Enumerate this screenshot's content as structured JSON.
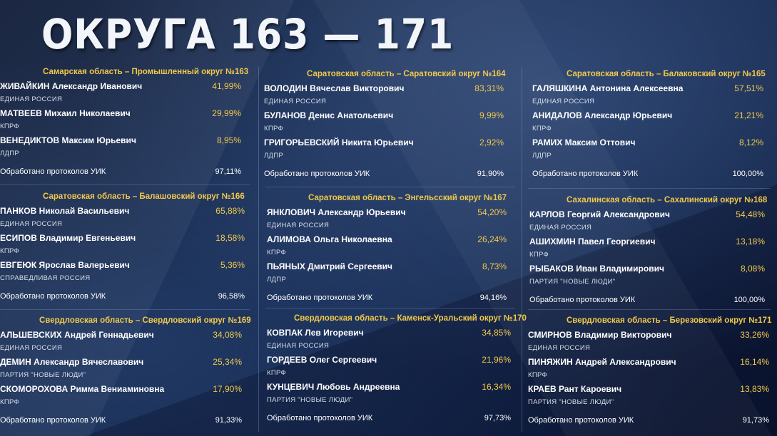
{
  "title": "ОКРУГА 163 — 171",
  "accent_color": "#f1c84a",
  "processed_label": "Обработано протоколов УИК",
  "districts": [
    {
      "header": "Самарская область – Промышленный округ №163",
      "candidates": [
        {
          "name": "ЖИВАЙКИН Александр Иванович",
          "percent": "41,99%",
          "party": "ЕДИНАЯ РОССИЯ"
        },
        {
          "name": "МАТВЕЕВ Михаил Николаевич",
          "percent": "29,99%",
          "party": "КПРФ"
        },
        {
          "name": "ВЕНЕДИКТОВ Максим Юрьевич",
          "percent": "8,95%",
          "party": "ЛДПР"
        }
      ],
      "processed": "97,11%"
    },
    {
      "header": "Саратовская область – Саратовский округ №164",
      "candidates": [
        {
          "name": "ВОЛОДИН Вячеслав Викторович",
          "percent": "83,31%",
          "party": "ЕДИНАЯ РОССИЯ"
        },
        {
          "name": "БУЛАНОВ Денис Анатольевич",
          "percent": "9,99%",
          "party": "КПРФ"
        },
        {
          "name": "ГРИГОРЬЕВСКИЙ Никита Юрьевич",
          "percent": "2,92%",
          "party": "ЛДПР"
        }
      ],
      "processed": "91,90%"
    },
    {
      "header": "Саратовская область – Балаковский округ №165",
      "candidates": [
        {
          "name": "ГАЛЯШКИНА Антонина Алексеевна",
          "percent": "57,51%",
          "party": "ЕДИНАЯ РОССИЯ"
        },
        {
          "name": "АНИДАЛОВ Александр Юрьевич",
          "percent": "21,21%",
          "party": "КПРФ"
        },
        {
          "name": "РАМИХ Максим Оттович",
          "percent": "8,12%",
          "party": "ЛДПР"
        }
      ],
      "processed": "100,00%"
    },
    {
      "header": "Саратовская область – Балашовский округ №166",
      "candidates": [
        {
          "name": "ПАНКОВ Николай Васильевич",
          "percent": "65,88%",
          "party": "ЕДИНАЯ РОССИЯ"
        },
        {
          "name": "ЕСИПОВ Владимир Евгеньевич",
          "percent": "18,58%",
          "party": "КПРФ"
        },
        {
          "name": "ЕВГЕЮК Ярослав Валерьевич",
          "percent": "5,36%",
          "party": "СПРАВЕДЛИВАЯ РОССИЯ"
        }
      ],
      "processed": "96,58%"
    },
    {
      "header": "Саратовская область – Энгельсский округ №167",
      "candidates": [
        {
          "name": "ЯНКЛОВИЧ Александр Юрьевич",
          "percent": "54,20%",
          "party": "ЕДИНАЯ РОССИЯ"
        },
        {
          "name": "АЛИМОВА Ольга Николаевна",
          "percent": "26,24%",
          "party": "КПРФ"
        },
        {
          "name": "ПЬЯНЫХ Дмитрий Сергеевич",
          "percent": "8,73%",
          "party": "ЛДПР"
        }
      ],
      "processed": "94,16%"
    },
    {
      "header": "Сахалинская область – Сахалинский округ №168",
      "candidates": [
        {
          "name": "КАРЛОВ Георгий Александрович",
          "percent": "54,48%",
          "party": "ЕДИНАЯ РОССИЯ"
        },
        {
          "name": "АШИХМИН Павел Георгиевич",
          "percent": "13,18%",
          "party": "КПРФ"
        },
        {
          "name": "РЫБАКОВ Иван Владимирович",
          "percent": "8,08%",
          "party": "ПАРТИЯ \"НОВЫЕ ЛЮДИ\""
        }
      ],
      "processed": "100,00%"
    },
    {
      "header": "Свердловская область – Свердловский округ №169",
      "candidates": [
        {
          "name": "АЛЬШЕВСКИХ Андрей Геннадьевич",
          "percent": "34,08%",
          "party": "ЕДИНАЯ РОССИЯ"
        },
        {
          "name": "ДЕМИН Александр Вячеславович",
          "percent": "25,34%",
          "party": "ПАРТИЯ \"НОВЫЕ ЛЮДИ\""
        },
        {
          "name": "СКОМОРОХОВА Римма Вениаминовна",
          "percent": "17,90%",
          "party": "КПРФ"
        }
      ],
      "processed": "91,33%"
    },
    {
      "header": "Свердловская область – Каменск-Уральский округ №170",
      "candidates": [
        {
          "name": "КОВПАК Лев Игоревич",
          "percent": "34,85%",
          "party": "ЕДИНАЯ РОССИЯ"
        },
        {
          "name": "ГОРДЕЕВ Олег Сергеевич",
          "percent": "21,96%",
          "party": "КПРФ"
        },
        {
          "name": "КУНЦЕВИЧ Любовь Андреевна",
          "percent": "16,34%",
          "party": "ПАРТИЯ \"НОВЫЕ ЛЮДИ\""
        }
      ],
      "processed": "97,73%"
    },
    {
      "header": "Свердловская область – Березовский округ №171",
      "candidates": [
        {
          "name": "СМИРНОВ Владимир Викторович",
          "percent": "33,26%",
          "party": "ЕДИНАЯ РОССИЯ"
        },
        {
          "name": "ПИНЯЖИН Андрей Александрович",
          "percent": "16,14%",
          "party": "КПРФ"
        },
        {
          "name": "КРАЕВ Рант Кароевич",
          "percent": "13,83%",
          "party": "ПАРТИЯ \"НОВЫЕ ЛЮДИ\""
        }
      ],
      "processed": "91,73%"
    }
  ]
}
